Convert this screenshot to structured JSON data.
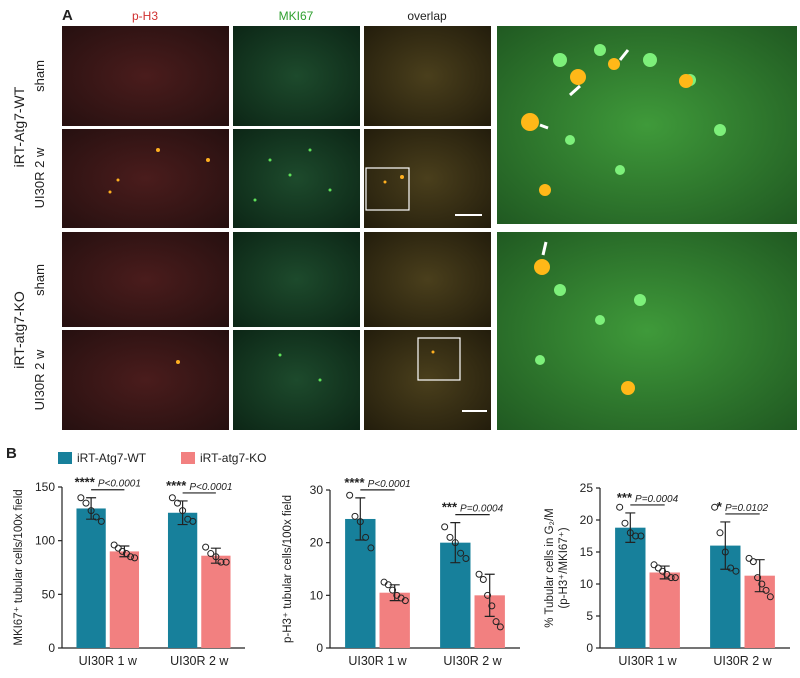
{
  "panel_a": {
    "label": "A",
    "columns": [
      "p-H3",
      "MKI67",
      "overlap"
    ],
    "groups": [
      {
        "name": "iRT-Atg7-WT",
        "rows": [
          "sham",
          "UI30R 2 w"
        ]
      },
      {
        "name": "iRT-atg7-KO",
        "rows": [
          "sham",
          "UI30R 2 w"
        ]
      }
    ]
  },
  "panel_b_label": "B",
  "chart_data": [
    {
      "type": "bar",
      "ylabel": [
        "MKI67⁺ tubular cells/100x field"
      ],
      "categories": [
        "UI30R 1 w",
        "UI30R 2 w"
      ],
      "ylim": [
        0,
        150
      ],
      "yticks": [
        0,
        50,
        100,
        150
      ],
      "series": [
        {
          "name": "iRT-Atg7-WT",
          "color": "#17809b",
          "values": [
            130,
            126
          ],
          "errors": [
            10,
            11
          ],
          "points": [
            [
              140,
              135,
              128,
              122,
              118
            ],
            [
              140,
              135,
              128,
              120,
              118
            ]
          ]
        },
        {
          "name": "iRT-atg7-KO",
          "color": "#f28080",
          "values": [
            90,
            86
          ],
          "errors": [
            5,
            7
          ],
          "points": [
            [
              96,
              93,
              90,
              88,
              85,
              84
            ],
            [
              94,
              88,
              85,
              80,
              80
            ]
          ]
        }
      ],
      "annotations": [
        {
          "stars": "****",
          "p": "P<0.0001"
        },
        {
          "stars": "****",
          "p": "P<0.0001"
        }
      ]
    },
    {
      "type": "bar",
      "ylabel": [
        "p-H3⁺ tubular cells/100x field"
      ],
      "categories": [
        "UI30R 1 w",
        "UI30R 2 w"
      ],
      "ylim": [
        0,
        30
      ],
      "yticks": [
        0,
        10,
        20,
        30
      ],
      "series": [
        {
          "color": "#17809b",
          "values": [
            24.5,
            20
          ],
          "errors": [
            4,
            3.8
          ],
          "points": [
            [
              29,
              25,
              24,
              21,
              19
            ],
            [
              23,
              21,
              20,
              18,
              17
            ]
          ]
        },
        {
          "color": "#f28080",
          "values": [
            10.5,
            10
          ],
          "errors": [
            1.5,
            4
          ],
          "points": [
            [
              12.5,
              12,
              11,
              10,
              9.5,
              9
            ],
            [
              14,
              13,
              10,
              8,
              5,
              4
            ]
          ]
        }
      ],
      "annotations": [
        {
          "stars": "****",
          "p": "P<0.0001"
        },
        {
          "stars": "***",
          "p": "P=0.0004"
        }
      ]
    },
    {
      "type": "bar",
      "ylabel": [
        "% Tubular cells in G₂/M",
        "(p-H3⁺/MKI67⁺)"
      ],
      "categories": [
        "UI30R 1 w",
        "UI30R 2 w"
      ],
      "ylim": [
        0,
        25
      ],
      "yticks": [
        0,
        5,
        10,
        15,
        20,
        25
      ],
      "series": [
        {
          "color": "#17809b",
          "values": [
            18.8,
            16
          ],
          "errors": [
            2.3,
            3.7
          ],
          "points": [
            [
              22,
              19.5,
              18,
              17.5,
              17.5
            ],
            [
              22,
              18,
              15,
              12.5,
              12
            ]
          ]
        },
        {
          "color": "#f28080",
          "values": [
            11.8,
            11.3
          ],
          "errors": [
            1,
            2.5
          ],
          "points": [
            [
              13,
              12.5,
              12,
              11.5,
              11,
              11
            ],
            [
              14,
              13.5,
              11,
              10,
              9,
              8
            ]
          ]
        }
      ],
      "annotations": [
        {
          "stars": "***",
          "p": "P=0.0004"
        },
        {
          "stars": "*",
          "p": "P=0.0102"
        }
      ]
    }
  ]
}
